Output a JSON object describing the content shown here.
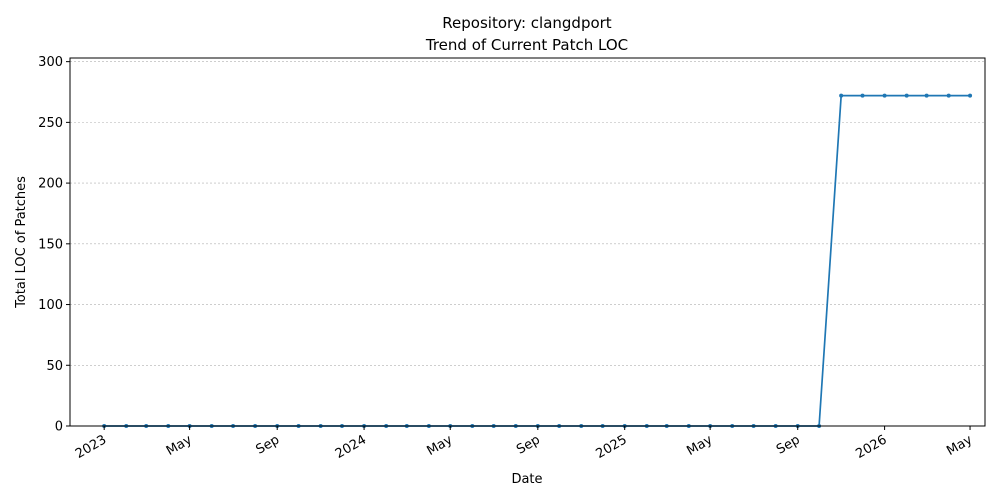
{
  "chart_data": {
    "type": "line",
    "title": "Repository: clangdport",
    "subtitle": "Trend of Current Patch LOC",
    "xlabel": "Date",
    "ylabel": "Total LOC of Patches",
    "ylim": [
      0,
      303
    ],
    "xlim": [
      "2022-11-14",
      "2026-05-22"
    ],
    "y_ticks": [
      0,
      50,
      100,
      150,
      200,
      250,
      300
    ],
    "y_tick_labels": [
      "0",
      "50",
      "100",
      "150",
      "200",
      "250",
      "300"
    ],
    "x_ticks": [
      "2023-01-01",
      "2023-05-01",
      "2023-09-01",
      "2024-01-01",
      "2024-05-01",
      "2024-09-01",
      "2025-01-01",
      "2025-05-01",
      "2025-09-01",
      "2026-01-01",
      "2026-05-01"
    ],
    "x_tick_labels": [
      "2023",
      "May",
      "Sep",
      "2024",
      "May",
      "Sep",
      "2025",
      "May",
      "Sep",
      "2026",
      "May"
    ],
    "grid": "y-dashed",
    "color": "#1f77b4",
    "series": [
      {
        "x": [
          "2023-01-01",
          "2023-02-01",
          "2023-03-01",
          "2023-04-01",
          "2023-05-01",
          "2023-06-01",
          "2023-07-01",
          "2023-08-01",
          "2023-09-01",
          "2023-10-01",
          "2023-11-01",
          "2023-12-01",
          "2024-01-01",
          "2024-02-01",
          "2024-03-01",
          "2024-04-01",
          "2024-05-01",
          "2024-06-01",
          "2024-07-01",
          "2024-08-01",
          "2024-09-01",
          "2024-10-01",
          "2024-11-01",
          "2024-12-01",
          "2025-01-01",
          "2025-02-01",
          "2025-03-01",
          "2025-04-01",
          "2025-05-01",
          "2025-06-01",
          "2025-07-01",
          "2025-08-01",
          "2025-09-01",
          "2025-10-01",
          "2025-11-01",
          "2025-12-01",
          "2026-01-01",
          "2026-02-01",
          "2026-03-01",
          "2026-04-01",
          "2026-05-01"
        ],
        "values": [
          0,
          0,
          0,
          0,
          0,
          0,
          0,
          0,
          0,
          0,
          0,
          0,
          0,
          0,
          0,
          0,
          0,
          0,
          0,
          0,
          0,
          0,
          0,
          0,
          0,
          0,
          0,
          0,
          0,
          0,
          0,
          0,
          0,
          0,
          272,
          272,
          272,
          272,
          272,
          272,
          272
        ]
      }
    ]
  }
}
